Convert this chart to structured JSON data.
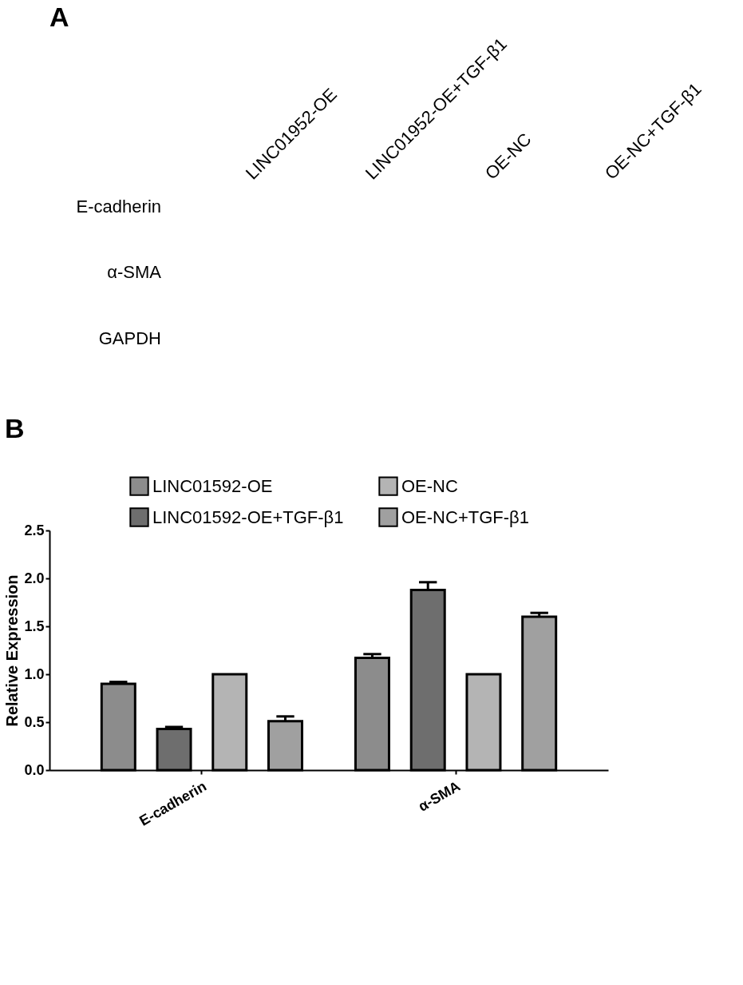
{
  "chart_data": [
    {
      "type": "other",
      "title": "A",
      "annotations": [
        "LINC01952-OE",
        "LINC01952-OE+TGF-β1",
        "OE-NC",
        "OE-NC+TGF-β1",
        "E-cadherin",
        "α-SMA",
        "GAPDH"
      ]
    },
    {
      "type": "bar",
      "title": "B",
      "ylabel": "Relative Expression",
      "categories": [
        "E-cadherin",
        "α-SMA"
      ],
      "series": [
        {
          "name": "LINC01592-OE",
          "color": "#8c8c8c",
          "values": [
            0.9,
            1.17
          ],
          "errors": [
            0.02,
            0.04
          ]
        },
        {
          "name": "LINC01592-OE+TGF-β1",
          "color": "#6e6e6e",
          "values": [
            0.43,
            1.88
          ],
          "errors": [
            0.02,
            0.08
          ]
        },
        {
          "name": "OE-NC",
          "color": "#b4b4b4",
          "values": [
            1.0,
            1.0
          ],
          "errors": [
            null,
            null
          ]
        },
        {
          "name": "OE-NC+TGF-β1",
          "color": "#a0a0a0",
          "values": [
            0.51,
            1.6
          ],
          "errors": [
            0.05,
            0.04
          ]
        }
      ],
      "ylim": [
        0,
        2.5
      ],
      "yticks": [
        {
          "value": 0,
          "label": "0.0"
        },
        0.5,
        {
          "value": 1,
          "label": "1.0"
        },
        1.5,
        {
          "value": 2,
          "label": "2.0"
        },
        2.5
      ],
      "grid": false,
      "legend": "top"
    }
  ]
}
